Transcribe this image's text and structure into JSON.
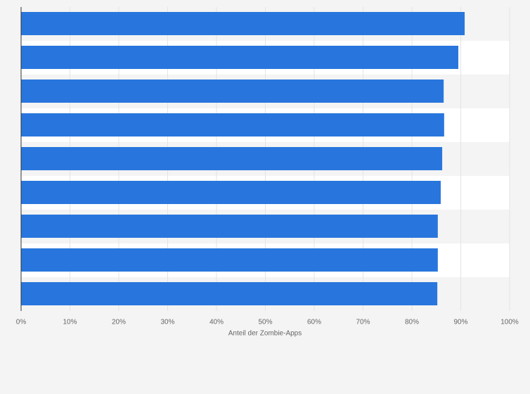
{
  "chart_data": {
    "type": "bar",
    "orientation": "horizontal",
    "xlabel": "Anteil der Zombie-Apps",
    "categories": [
      null,
      null,
      null,
      null,
      null,
      null,
      null,
      null,
      null
    ],
    "values": [
      90.8,
      89.5,
      86.5,
      86.6,
      86.2,
      85.9,
      85.3,
      85.3,
      85.2
    ],
    "color": "#2876dd",
    "xlim": [
      0,
      100
    ],
    "xticks": [
      {
        "value": 0,
        "label": "0%"
      },
      {
        "value": 10,
        "label": "10%"
      },
      {
        "value": 20,
        "label": "20%"
      },
      {
        "value": 30,
        "label": "30%"
      },
      {
        "value": 40,
        "label": "40%"
      },
      {
        "value": 50,
        "label": "50%"
      },
      {
        "value": 60,
        "label": "60%"
      },
      {
        "value": 70,
        "label": "70%"
      },
      {
        "value": 80,
        "label": "80%"
      },
      {
        "value": 90,
        "label": "90%"
      },
      {
        "value": 100,
        "label": "100%"
      }
    ],
    "grid": true
  }
}
